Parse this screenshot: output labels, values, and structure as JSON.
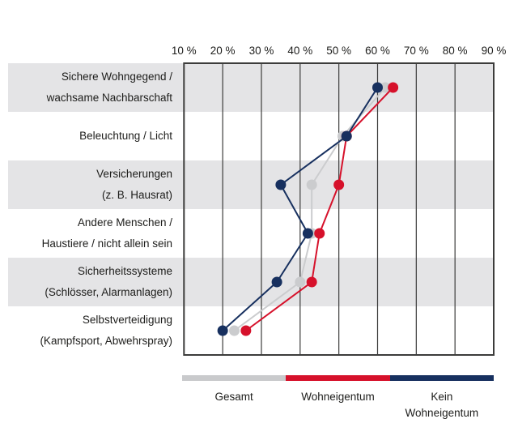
{
  "chart_data": {
    "type": "line",
    "variant": "dot-line-chart-with-horizontal-category-rows",
    "title": "",
    "x_axis": {
      "position": "top",
      "range": [
        10,
        90
      ],
      "tick_values": [
        10,
        20,
        30,
        40,
        50,
        60,
        70,
        80,
        90
      ],
      "tick_labels": [
        "10 %",
        "20 %",
        "30 %",
        "40 %",
        "50 %",
        "60 %",
        "70 %",
        "80 %",
        "90 %"
      ]
    },
    "grid": "vertical-only",
    "row_banding": "alternating-gray-white",
    "categories": [
      {
        "lines": [
          "Sichere Wohngegend /",
          "wachsame Nachbarschaft"
        ]
      },
      {
        "lines": [
          "Beleuchtung / Licht"
        ]
      },
      {
        "lines": [
          "Versicherungen",
          "(z. B. Hausrat)"
        ]
      },
      {
        "lines": [
          "Andere Menschen /",
          "Haustiere / nicht allein sein"
        ]
      },
      {
        "lines": [
          "Sicherheitssysteme",
          "(Schlösser, Alarmanlagen)"
        ]
      },
      {
        "lines": [
          "Selbstverteidigung",
          "(Kampfsport, Abwehrspray)"
        ]
      }
    ],
    "series": [
      {
        "name": "Gesamt",
        "color": "#cbccce",
        "values": [
          62,
          51,
          43,
          43,
          40,
          23
        ]
      },
      {
        "name": "Wohneigentum",
        "color": "#d6112b",
        "values": [
          64,
          52,
          50,
          45,
          43,
          26
        ]
      },
      {
        "name": "Kein Wohneigentum",
        "color": "#17305f",
        "values": [
          60,
          52,
          35,
          42,
          34,
          20
        ]
      }
    ],
    "legend": {
      "position": "bottom",
      "items": [
        {
          "lines": [
            "Gesamt"
          ],
          "color": "#c9cacc"
        },
        {
          "lines": [
            "Wohneigentum"
          ],
          "color": "#d6112b"
        },
        {
          "lines": [
            "Kein",
            "Wohneigentum"
          ],
          "color": "#17305f"
        }
      ]
    },
    "colors": {
      "band": "#e4e4e6",
      "grid": "#3c3c3b",
      "text": "#1d1d1b",
      "background": "#ffffff"
    }
  }
}
